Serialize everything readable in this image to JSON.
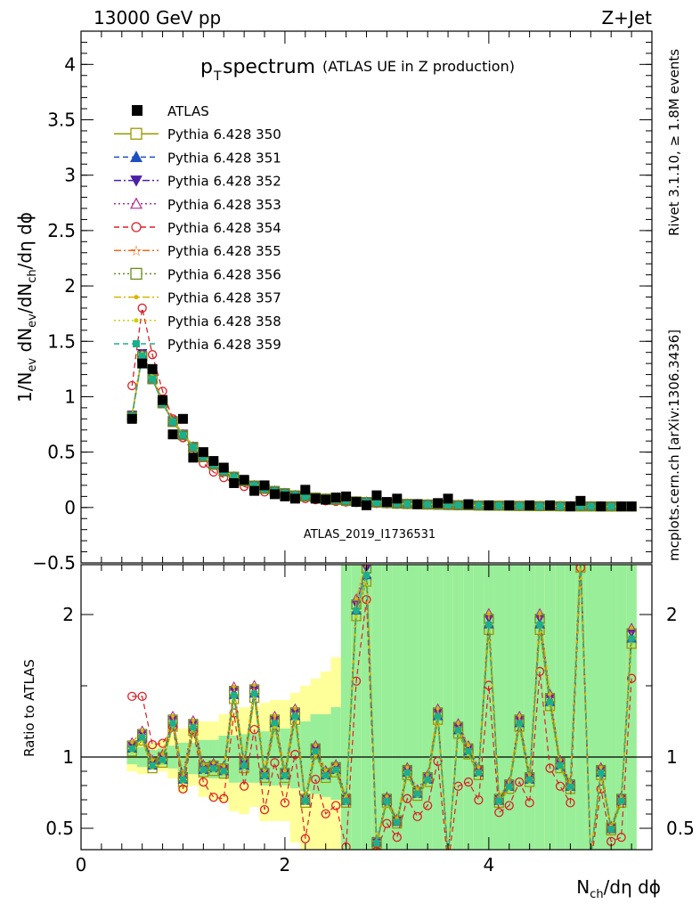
{
  "header": {
    "energy": "13000 GeV pp",
    "process": "Z+Jet"
  },
  "side_labels": {
    "rivet": "Rivet 3.1.10, ≥ 1.8M events",
    "mcplots": "mcplots.cern.ch [arXiv:1306.3436]"
  },
  "chart_data": [
    {
      "type": "line",
      "title_main": "p",
      "title_sub": "T",
      "title_rest": " spectrum",
      "title_note": "(ATLAS UE in Z production)",
      "watermark": "ATLAS_2019_I1736531",
      "ylabel": "1/N_ev dN_ev/dN_ch/dη dϕ",
      "ylim": [
        -0.5,
        4.3
      ],
      "yticks": [
        "−0.5",
        "0",
        "0.5",
        "1",
        "1.5",
        "2",
        "2.5",
        "3",
        "3.5",
        "4"
      ],
      "ytick_values": [
        -0.5,
        0,
        0.5,
        1,
        1.5,
        2,
        2.5,
        3,
        3.5,
        4
      ],
      "legend": "top-left",
      "series": [
        {
          "name": "ATLAS",
          "color": "#000000",
          "marker": "square-filled",
          "x": [
            0.5,
            0.6,
            0.7,
            0.8,
            0.9,
            1.0,
            1.1,
            1.2,
            1.3,
            1.4,
            1.5,
            1.6,
            1.7,
            1.8,
            1.9,
            2.0,
            2.1,
            2.2,
            2.3,
            2.4,
            2.5,
            2.6,
            2.7,
            2.8,
            2.9,
            3.0,
            3.1,
            3.3,
            3.5,
            3.6,
            3.8,
            4.0,
            4.2,
            4.4,
            4.6,
            4.8,
            4.9,
            5.1,
            5.3,
            5.4
          ],
          "y": [
            0.8,
            1.3,
            1.25,
            0.97,
            0.66,
            0.8,
            0.45,
            0.5,
            0.42,
            0.36,
            0.22,
            0.25,
            0.15,
            0.2,
            0.12,
            0.1,
            0.08,
            0.16,
            0.08,
            0.07,
            0.09,
            0.1,
            0.05,
            0.02,
            0.11,
            0.05,
            0.08,
            0.03,
            0.04,
            0.08,
            0.03,
            0.02,
            0.02,
            0.02,
            0.02,
            0.01,
            0.06,
            0.01,
            0.01,
            0.01
          ]
        },
        {
          "name": "Pythia 6.428 350",
          "color": "#999900",
          "marker": "square-open",
          "line": "solid"
        },
        {
          "name": "Pythia 6.428 351",
          "color": "#1f4fbf",
          "marker": "triangle-up-filled",
          "line": "dashed"
        },
        {
          "name": "Pythia 6.428 352",
          "color": "#4b1fa8",
          "marker": "triangle-down-filled",
          "line": "dashdot"
        },
        {
          "name": "Pythia 6.428 353",
          "color": "#b02b8c",
          "marker": "triangle-up-open",
          "line": "dotted"
        },
        {
          "name": "Pythia 6.428 354",
          "color": "#dd1f26",
          "marker": "circle-open",
          "line": "dashed"
        },
        {
          "name": "Pythia 6.428 355",
          "color": "#f06a1a",
          "marker": "star-open",
          "line": "dashdot"
        },
        {
          "name": "Pythia 6.428 356",
          "color": "#6a8a1a",
          "marker": "square-open",
          "line": "dotted"
        },
        {
          "name": "Pythia 6.428 357",
          "color": "#d9b400",
          "marker": "cross",
          "line": "dashdot"
        },
        {
          "name": "Pythia 6.428 358",
          "color": "#c8d400",
          "marker": "dot",
          "line": "dotted"
        },
        {
          "name": "Pythia 6.428 359",
          "color": "#1ab08c",
          "marker": "square-filled",
          "line": "dashed"
        }
      ],
      "mc_x": [
        0.5,
        0.6,
        0.7,
        0.8,
        0.9,
        1.0,
        1.1,
        1.2,
        1.3,
        1.4,
        1.5,
        1.6,
        1.7,
        1.8,
        1.9,
        2.0,
        2.1,
        2.2,
        2.3,
        2.4,
        2.5,
        2.6,
        2.7,
        2.8,
        2.9,
        3.0,
        3.1,
        3.2,
        3.3,
        3.4,
        3.5,
        3.6,
        3.7,
        3.8,
        3.9,
        4.0,
        4.1,
        4.2,
        4.3,
        4.4,
        4.5,
        4.6,
        4.7,
        4.8,
        4.9,
        5.0,
        5.1,
        5.2,
        5.3,
        5.4
      ],
      "mc_y_350": [
        0.83,
        1.38,
        1.17,
        0.95,
        0.78,
        0.66,
        0.55,
        0.46,
        0.39,
        0.33,
        0.28,
        0.24,
        0.2,
        0.17,
        0.15,
        0.13,
        0.11,
        0.1,
        0.09,
        0.08,
        0.07,
        0.06,
        0.055,
        0.05,
        0.045,
        0.04,
        0.035,
        0.032,
        0.03,
        0.027,
        0.025,
        0.023,
        0.021,
        0.02,
        0.018,
        0.017,
        0.016,
        0.015,
        0.014,
        0.013,
        0.012,
        0.012,
        0.011,
        0.01,
        0.01,
        0.01,
        0.009,
        0.009,
        0.008,
        0.008
      ],
      "mc_y_354": [
        1.1,
        1.8,
        1.38,
        1.05,
        0.8,
        0.63,
        0.5,
        0.4,
        0.32,
        0.27,
        0.22,
        0.19,
        0.16,
        0.14,
        0.12,
        0.1,
        0.09,
        0.08,
        0.07,
        0.06,
        0.055,
        0.05,
        0.045,
        0.04,
        0.036,
        0.033,
        0.03,
        0.027,
        0.025,
        0.023,
        0.021,
        0.019,
        0.018,
        0.016,
        0.015,
        0.014,
        0.013,
        0.012,
        0.012,
        0.011,
        0.01,
        0.01,
        0.009,
        0.009,
        0.008,
        0.008,
        0.007,
        0.007,
        0.007,
        0.006
      ],
      "xlim": [
        0,
        5.6
      ]
    },
    {
      "type": "line",
      "ylabel": "Ratio to ATLAS",
      "xlabel": "N_ch/dη dϕ",
      "ylim": [
        0.35,
        2.35
      ],
      "yticks": [
        "0.5",
        "1",
        "2"
      ],
      "ytick_values": [
        0.5,
        1,
        2
      ],
      "xticks": [
        "0",
        "2",
        "4"
      ],
      "xtick_values": [
        0,
        2,
        4
      ],
      "xlim": [
        0,
        5.6
      ],
      "reference": 1,
      "ratio_x": [
        0.5,
        0.6,
        0.7,
        0.8,
        0.9,
        1.0,
        1.1,
        1.2,
        1.3,
        1.4,
        1.5,
        1.6,
        1.7,
        1.8,
        1.9,
        2.0,
        2.1,
        2.2,
        2.3,
        2.4,
        2.5,
        2.6,
        2.7,
        2.8,
        2.9,
        3.0,
        3.1,
        3.2,
        3.3,
        3.4,
        3.5,
        3.6,
        3.7,
        3.8,
        3.9,
        4.0,
        4.1,
        4.2,
        4.3,
        4.4,
        4.5,
        4.6,
        4.7,
        4.8,
        4.9,
        5.0,
        5.1,
        5.2,
        5.3,
        5.4
      ],
      "ratio_350": [
        1.07,
        1.15,
        0.95,
        0.99,
        1.25,
        0.85,
        1.22,
        0.92,
        0.93,
        0.91,
        1.45,
        0.95,
        1.46,
        0.88,
        1.25,
        0.88,
        1.3,
        0.7,
        1.05,
        0.88,
        0.92,
        0.7,
        2.05,
        2.3,
        0.4,
        0.7,
        0.55,
        0.9,
        0.75,
        0.85,
        1.3,
        0.3,
        1.2,
        1.05,
        0.9,
        1.95,
        0.7,
        0.8,
        1.25,
        0.85,
        1.95,
        1.4,
        0.95,
        0.8,
        2.4,
        0.3,
        0.9,
        0.5,
        0.7,
        1.85
      ],
      "ratio_354": [
        1.47,
        1.47,
        1.12,
        1.13,
        1.25,
        0.8,
        1.22,
        0.85,
        0.74,
        0.73,
        1.35,
        0.82,
        1.23,
        0.65,
        0.99,
        0.7,
        1.05,
        0.44,
        0.87,
        0.62,
        0.68,
        0.38,
        1.58,
        2.17,
        0.35,
        0.55,
        0.45,
        0.73,
        0.6,
        0.68,
        1.0,
        0.25,
        0.82,
        0.85,
        0.72,
        1.55,
        0.63,
        0.68,
        0.85,
        0.7,
        1.65,
        0.95,
        0.82,
        0.7,
        2.4,
        0.25,
        0.8,
        0.42,
        0.45,
        1.6
      ],
      "band_yellow": {
        "lo": [
          0.9,
          0.88,
          0.92,
          0.9,
          0.85,
          0.75,
          0.8,
          0.72,
          0.7,
          0.68,
          0.62,
          0.6,
          0.65,
          0.55,
          0.55,
          0.55,
          0.4,
          0.35,
          0.3,
          0.3,
          0.35,
          0.3,
          0.3,
          0.3,
          0.3,
          0.3,
          0.3,
          0.3,
          0.3,
          0.3,
          0.3,
          0.3,
          0.3,
          0.3,
          0.3,
          0.3,
          0.3,
          0.3,
          0.3,
          0.3,
          0.3,
          0.3,
          0.3,
          0.3,
          0.3,
          0.3,
          0.3,
          0.3,
          0.3,
          0.3
        ],
        "hi": [
          1.1,
          1.12,
          1.1,
          1.12,
          1.15,
          1.2,
          1.22,
          1.25,
          1.25,
          1.3,
          1.3,
          1.35,
          1.35,
          1.38,
          1.4,
          1.4,
          1.45,
          1.5,
          1.55,
          1.6,
          1.7,
          1.8,
          2.4,
          2.4,
          2.4,
          2.4,
          2.4,
          2.4,
          2.4,
          2.4,
          2.4,
          2.4,
          2.4,
          2.4,
          2.4,
          2.4,
          2.4,
          2.4,
          2.4,
          2.4,
          2.4,
          2.4,
          2.4,
          2.4,
          2.4,
          2.4,
          2.4,
          2.4,
          2.4,
          2.4
        ]
      },
      "band_green": {
        "lo": [
          0.95,
          0.93,
          0.95,
          0.94,
          0.92,
          0.88,
          0.88,
          0.86,
          0.85,
          0.85,
          0.82,
          0.82,
          0.82,
          0.8,
          0.8,
          0.8,
          0.78,
          0.76,
          0.74,
          0.72,
          0.7,
          0.3,
          0.3,
          0.3,
          0.3,
          0.3,
          0.3,
          0.3,
          0.3,
          0.3,
          0.3,
          0.3,
          0.3,
          0.3,
          0.3,
          0.3,
          0.3,
          0.3,
          0.3,
          0.3,
          0.3,
          0.3,
          0.3,
          0.3,
          0.3,
          0.3,
          0.3,
          0.3,
          0.3,
          0.3
        ],
        "hi": [
          1.05,
          1.07,
          1.05,
          1.06,
          1.08,
          1.1,
          1.1,
          1.12,
          1.12,
          1.15,
          1.15,
          1.16,
          1.17,
          1.18,
          1.2,
          1.2,
          1.22,
          1.25,
          1.3,
          1.3,
          1.35,
          2.4,
          2.4,
          2.4,
          2.4,
          2.4,
          2.4,
          2.4,
          2.4,
          2.4,
          2.4,
          2.4,
          2.4,
          2.4,
          2.4,
          2.4,
          2.4,
          2.4,
          2.4,
          2.4,
          2.4,
          2.4,
          2.4,
          2.4,
          2.4,
          2.4,
          2.4,
          2.4,
          2.4,
          2.4
        ]
      }
    }
  ]
}
